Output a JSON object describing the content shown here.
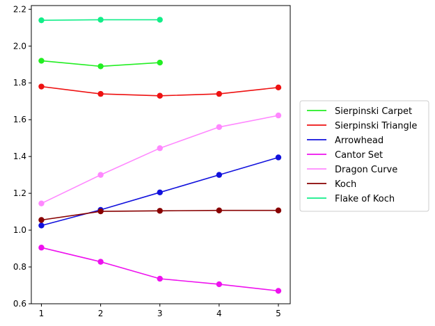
{
  "chart_data": {
    "type": "line",
    "title": "",
    "xlabel": "",
    "ylabel": "",
    "xlim": [
      0.83,
      5.2
    ],
    "ylim": [
      0.6,
      2.22
    ],
    "x_ticks": [
      1,
      2,
      3,
      4,
      5
    ],
    "y_ticks": [
      0.6,
      0.8,
      1.0,
      1.2,
      1.4,
      1.6,
      1.8,
      2.0,
      2.2
    ],
    "x_tick_labels": [
      "1",
      "2",
      "3",
      "4",
      "5"
    ],
    "y_tick_labels": [
      "0.6",
      "0.8",
      "1.0",
      "1.2",
      "1.4",
      "1.6",
      "1.8",
      "2.0",
      "2.2"
    ],
    "grid": false,
    "legend_position": "right-outside",
    "series": [
      {
        "name": "Sierpinski Carpet",
        "color": "#22ee22",
        "x": [
          1,
          2,
          3
        ],
        "y": [
          1.92,
          1.89,
          1.91
        ]
      },
      {
        "name": "Sierpinski Triangle",
        "color": "#ee1111",
        "x": [
          1,
          2,
          3,
          4,
          5
        ],
        "y": [
          1.78,
          1.74,
          1.73,
          1.74,
          1.775
        ]
      },
      {
        "name": "Arrowhead",
        "color": "#1111dd",
        "x": [
          1,
          2,
          3,
          4,
          5
        ],
        "y": [
          1.025,
          1.11,
          1.205,
          1.3,
          1.395
        ]
      },
      {
        "name": "Cantor Set",
        "color": "#ee11ee",
        "x": [
          1,
          2,
          3,
          4,
          5
        ],
        "y": [
          0.905,
          0.828,
          0.736,
          0.706,
          0.67
        ]
      },
      {
        "name": "Dragon Curve",
        "color": "#ff88ff",
        "x": [
          1,
          2,
          3,
          4,
          5
        ],
        "y": [
          1.145,
          1.3,
          1.445,
          1.56,
          1.623
        ]
      },
      {
        "name": "Koch",
        "color": "#880000",
        "x": [
          1,
          2,
          3,
          4,
          5
        ],
        "y": [
          1.055,
          1.102,
          1.105,
          1.107,
          1.107
        ]
      },
      {
        "name": "Flake of Koch",
        "color": "#11ee88",
        "x": [
          1,
          2,
          3
        ],
        "y": [
          2.14,
          2.143,
          2.143
        ]
      }
    ]
  }
}
